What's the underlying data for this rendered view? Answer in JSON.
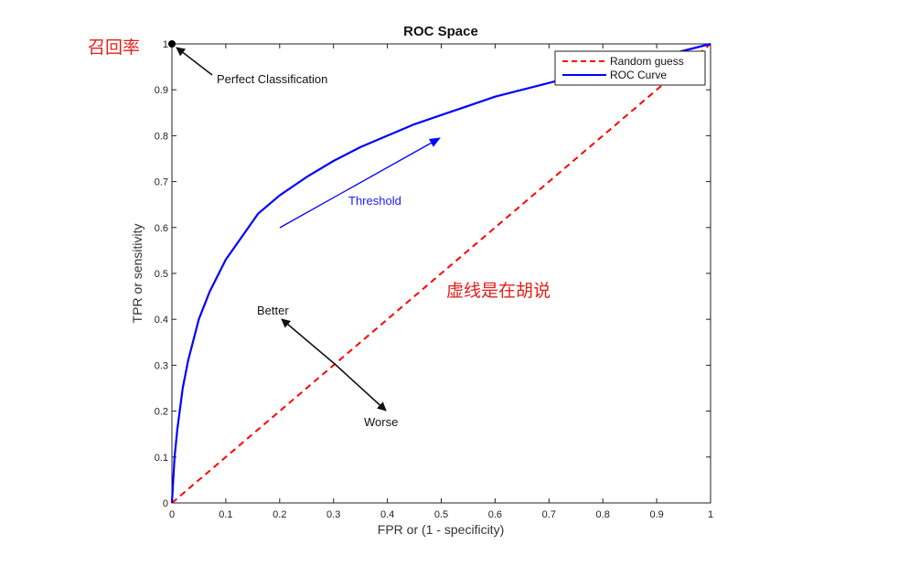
{
  "chart_data": {
    "type": "line",
    "title": "ROC Space",
    "xlabel": "FPR or (1 - specificity)",
    "ylabel": "TPR or sensitivity",
    "xlim": [
      0,
      1
    ],
    "ylim": [
      0,
      1
    ],
    "x_ticks": [
      "0",
      "0.1",
      "0.2",
      "0.3",
      "0.4",
      "0.5",
      "0.6",
      "0.7",
      "0.8",
      "0.9",
      "1"
    ],
    "y_ticks": [
      "0",
      "0.1",
      "0.2",
      "0.3",
      "0.4",
      "0.5",
      "0.6",
      "0.7",
      "0.8",
      "0.9",
      "1"
    ],
    "grid": false,
    "legend_position": "top-right",
    "series": [
      {
        "name": "Random guess",
        "style": "dashed",
        "color": "#ff0000",
        "x": [
          0,
          1
        ],
        "y": [
          0,
          1
        ]
      },
      {
        "name": "ROC Curve",
        "style": "solid",
        "color": "#0000ff",
        "x": [
          0,
          0.005,
          0.01,
          0.02,
          0.03,
          0.05,
          0.07,
          0.1,
          0.13,
          0.16,
          0.2,
          0.25,
          0.3,
          0.35,
          0.4,
          0.45,
          0.5,
          0.55,
          0.6,
          0.65,
          0.7,
          0.75,
          0.8,
          0.85,
          0.9,
          0.95,
          1
        ],
        "y": [
          0,
          0.1,
          0.16,
          0.25,
          0.31,
          0.4,
          0.46,
          0.53,
          0.58,
          0.63,
          0.67,
          0.71,
          0.745,
          0.775,
          0.8,
          0.825,
          0.845,
          0.865,
          0.885,
          0.9,
          0.915,
          0.93,
          0.945,
          0.96,
          0.97,
          0.985,
          1
        ]
      }
    ],
    "annotations": {
      "perfect": {
        "text": "Perfect Classification",
        "point": [
          0,
          1
        ],
        "color": "#000000"
      },
      "threshold": {
        "text": "Threshold",
        "color": "#0000ff"
      },
      "better": {
        "text": "Better"
      },
      "worse": {
        "text": "Worse"
      },
      "recall_label": {
        "text": "召回率",
        "color": "#e0201b"
      },
      "dashed_note": {
        "text": "虚线是在胡说",
        "color": "#e0201b"
      }
    }
  }
}
